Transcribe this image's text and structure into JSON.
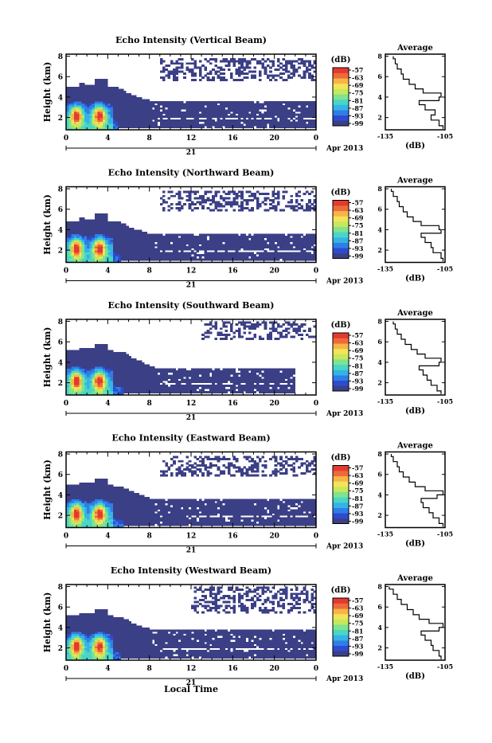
{
  "figure": {
    "date_label": "Apr 2013",
    "day_label": "21",
    "xlabel": "Local Time",
    "ylabel": "Height (km)",
    "x_ticks": [
      "0",
      "4",
      "8",
      "12",
      "16",
      "20",
      "0"
    ],
    "y_ticks": [
      "2",
      "4",
      "6",
      "8"
    ],
    "colorbar_unit": "(dB)",
    "colorbar_ticks": [
      "-57",
      "-63",
      "-69",
      "-75",
      "-81",
      "-87",
      "-93",
      "-99"
    ],
    "colors": {
      "background": "#ffffff",
      "navy": "#3b3f85",
      "colormap": [
        "#3b3f85",
        "#2e4bd0",
        "#2d7fe6",
        "#36b3e6",
        "#49d6c6",
        "#7fe38f",
        "#c7e85a",
        "#f2e45a",
        "#f7b545",
        "#ef6a3a",
        "#e23b2e"
      ]
    },
    "avg_title": "Average",
    "avg_xlabel": "(dB)",
    "avg_x_ticks": [
      "-135",
      "-105"
    ],
    "avg_y_ticks": [
      "2",
      "4",
      "6",
      "8"
    ]
  },
  "chart_data": [
    {
      "type": "heatmap",
      "title": "Echo Intensity (Vertical Beam)",
      "xlabel": "Local Time",
      "ylabel": "Height (km)",
      "xlim": [
        0,
        24
      ],
      "ylim": [
        0.8,
        8.2
      ],
      "colorbar": {
        "unit": "dB",
        "range": [
          -99,
          -57
        ]
      },
      "regions": {
        "convective_top_km": 5.5,
        "convective_end_h": 5.0,
        "stratiform_band_km": [
          1.0,
          3.7
        ],
        "stratiform_end_h": 24,
        "upper_sparse_band_km": [
          5.6,
          7.8
        ],
        "upper_sparse_start_h": 9
      },
      "average_profile": {
        "height_km": [
          0.9,
          1.5,
          2.0,
          2.5,
          3.0,
          3.5,
          3.8,
          4.2,
          4.6,
          5.0,
          5.5,
          6.0,
          6.5,
          7.0,
          7.5,
          8.0
        ],
        "mean_dB": [
          -106,
          -108,
          -112,
          -110,
          -115,
          -118,
          -108,
          -107,
          -116,
          -120,
          -123,
          -126,
          -127,
          -129,
          -130,
          -131
        ],
        "xlim": [
          -135,
          -105
        ]
      }
    },
    {
      "type": "heatmap",
      "title": "Echo Intensity (Northward Beam)",
      "xlabel": "Local Time",
      "ylabel": "Height (km)",
      "xlim": [
        0,
        24
      ],
      "ylim": [
        0.8,
        8.2
      ],
      "colorbar": {
        "unit": "dB",
        "range": [
          -99,
          -57
        ]
      },
      "regions": {
        "convective_top_km": 5.3,
        "convective_end_h": 5.2,
        "stratiform_band_km": [
          1.0,
          3.6
        ],
        "stratiform_end_h": 24,
        "upper_sparse_band_km": [
          5.8,
          7.9
        ],
        "upper_sparse_start_h": 9
      },
      "average_profile": {
        "height_km": [
          0.9,
          1.5,
          2.0,
          2.5,
          3.0,
          3.5,
          3.8,
          4.2,
          4.6,
          5.0,
          5.5,
          6.0,
          6.5,
          7.0,
          7.5,
          8.0
        ],
        "mean_dB": [
          -106,
          -107,
          -111,
          -112,
          -115,
          -117,
          -107,
          -108,
          -117,
          -121,
          -124,
          -126,
          -128,
          -129,
          -131,
          -132
        ],
        "xlim": [
          -135,
          -105
        ]
      }
    },
    {
      "type": "heatmap",
      "title": "Echo Intensity (Southward Beam)",
      "xlabel": "Local Time",
      "ylabel": "Height (km)",
      "xlim": [
        0,
        24
      ],
      "ylim": [
        0.8,
        8.2
      ],
      "colorbar": {
        "unit": "dB",
        "range": [
          -99,
          -57
        ]
      },
      "regions": {
        "convective_top_km": 5.6,
        "convective_end_h": 5.5,
        "stratiform_band_km": [
          1.0,
          3.5
        ],
        "stratiform_end_h": 22,
        "upper_sparse_band_km": [
          6.2,
          8.0
        ],
        "upper_sparse_start_h": 13
      },
      "average_profile": {
        "height_km": [
          0.9,
          1.5,
          2.0,
          2.5,
          3.0,
          3.5,
          3.8,
          4.2,
          4.6,
          5.0,
          5.5,
          6.0,
          6.5,
          7.0,
          7.5,
          8.0
        ],
        "mean_dB": [
          -107,
          -109,
          -112,
          -114,
          -116,
          -118,
          -108,
          -107,
          -115,
          -119,
          -122,
          -125,
          -127,
          -129,
          -130,
          -131
        ],
        "xlim": [
          -135,
          -105
        ]
      }
    },
    {
      "type": "heatmap",
      "title": "Echo Intensity (Eastward Beam)",
      "xlabel": "Local Time",
      "ylabel": "Height (km)",
      "xlim": [
        0,
        24
      ],
      "ylim": [
        0.8,
        8.2
      ],
      "colorbar": {
        "unit": "dB",
        "range": [
          -99,
          -57
        ]
      },
      "regions": {
        "convective_top_km": 5.4,
        "convective_end_h": 5.4,
        "stratiform_band_km": [
          1.0,
          3.6
        ],
        "stratiform_end_h": 24,
        "upper_sparse_band_km": [
          5.8,
          7.9
        ],
        "upper_sparse_start_h": 9
      },
      "average_profile": {
        "height_km": [
          0.9,
          1.5,
          2.0,
          2.5,
          3.0,
          3.5,
          3.8,
          4.2,
          4.6,
          5.0,
          5.5,
          6.0,
          6.5,
          7.0,
          7.5,
          8.0
        ],
        "mean_dB": [
          -106,
          -108,
          -111,
          -113,
          -116,
          -117,
          -109,
          -106,
          -115,
          -120,
          -123,
          -126,
          -128,
          -129,
          -131,
          -132
        ],
        "xlim": [
          -135,
          -105
        ]
      }
    },
    {
      "type": "heatmap",
      "title": "Echo Intensity (Westward Beam)",
      "xlabel": "Local Time",
      "ylabel": "Height (km)",
      "xlim": [
        0,
        24
      ],
      "ylim": [
        0.8,
        8.2
      ],
      "colorbar": {
        "unit": "dB",
        "range": [
          -99,
          -57
        ]
      },
      "regions": {
        "convective_top_km": 5.6,
        "convective_end_h": 5.3,
        "stratiform_band_km": [
          1.0,
          3.8
        ],
        "stratiform_end_h": 24,
        "upper_sparse_band_km": [
          5.4,
          8.1
        ],
        "upper_sparse_start_h": 12
      },
      "average_profile": {
        "height_km": [
          0.9,
          1.5,
          2.0,
          2.5,
          3.0,
          3.5,
          3.8,
          4.2,
          4.6,
          5.0,
          5.5,
          6.0,
          6.5,
          7.0,
          7.5,
          8.0
        ],
        "mean_dB": [
          -107,
          -108,
          -111,
          -112,
          -115,
          -117,
          -108,
          -106,
          -113,
          -118,
          -121,
          -124,
          -127,
          -129,
          -131,
          -133
        ],
        "xlim": [
          -135,
          -105
        ]
      }
    }
  ]
}
